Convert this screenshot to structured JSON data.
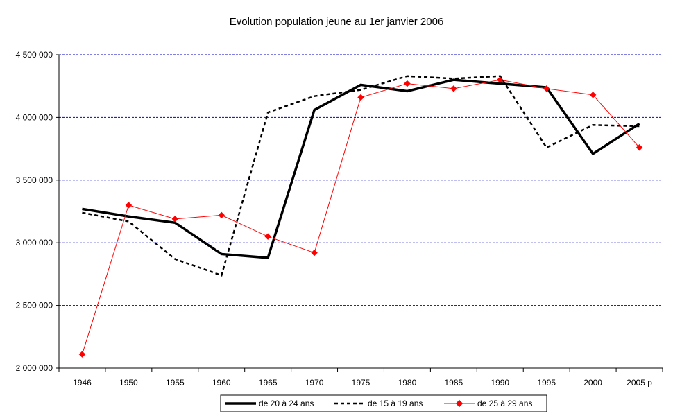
{
  "chart_data": {
    "type": "line",
    "title": "Evolution population jeune au 1er janvier 2006",
    "categories": [
      "1946",
      "1950",
      "1955",
      "1960",
      "1965",
      "1970",
      "1975",
      "1980",
      "1985",
      "1990",
      "1995",
      "2000",
      "2005 p"
    ],
    "ylim": [
      2000000,
      4500000
    ],
    "yticks": [
      {
        "value": 2000000,
        "label": "2 000 000"
      },
      {
        "value": 2500000,
        "label": "2 500 000"
      },
      {
        "value": 3000000,
        "label": "3 000 000"
      },
      {
        "value": 3500000,
        "label": "3 500 000"
      },
      {
        "value": 4000000,
        "label": "4 000 000"
      },
      {
        "value": 4500000,
        "label": "4 500 000"
      }
    ],
    "grid": "horizontal dashed",
    "legend_position": "bottom",
    "series": [
      {
        "name": "de 20 à 24 ans",
        "color": "#000000",
        "style": "solid-thick",
        "values": [
          3270000,
          3210000,
          3160000,
          2910000,
          2880000,
          4060000,
          4260000,
          4210000,
          4300000,
          4270000,
          4240000,
          3710000,
          3950000
        ]
      },
      {
        "name": "de 15 à 19 ans",
        "color": "#000000",
        "style": "dashed",
        "values": [
          3240000,
          3170000,
          2870000,
          2740000,
          4040000,
          4170000,
          4220000,
          4330000,
          4310000,
          4330000,
          3760000,
          3940000,
          3930000
        ]
      },
      {
        "name": "de 25 à 29 ans",
        "color": "#ff0000",
        "style": "thin-diamond",
        "values": [
          2110000,
          3300000,
          3190000,
          3220000,
          3050000,
          2920000,
          4160000,
          4270000,
          4230000,
          4300000,
          4230000,
          4180000,
          3760000
        ]
      }
    ]
  }
}
